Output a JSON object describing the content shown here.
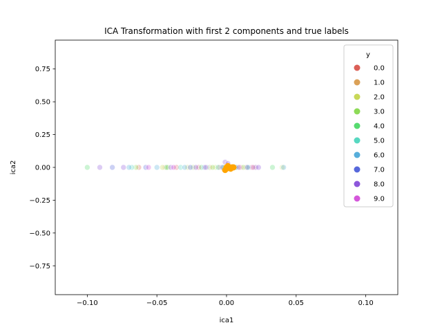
{
  "chart_data": {
    "type": "scatter",
    "title": "ICA Transformation with first 2 components and true labels",
    "xlabel": "ica1",
    "ylabel": "ica2",
    "xlim": [
      -0.123,
      0.123
    ],
    "ylim": [
      -0.97,
      0.97
    ],
    "xticks": [
      -0.1,
      -0.05,
      0.0,
      0.05,
      0.1
    ],
    "xtick_labels": [
      "−0.10",
      "−0.05",
      "0.00",
      "0.05",
      "0.10"
    ],
    "yticks": [
      0.75,
      0.5,
      0.25,
      0.0,
      -0.25,
      -0.5,
      -0.75
    ],
    "ytick_labels": [
      "0.75",
      "0.50",
      "0.25",
      "0.00",
      "−0.25",
      "−0.50",
      "−0.75"
    ],
    "grid": false,
    "legend": {
      "title": "y",
      "placement": "top-right",
      "entries": [
        {
          "label": "0.0",
          "color": "#db5f57"
        },
        {
          "label": "1.0",
          "color": "#dba157"
        },
        {
          "label": "2.0",
          "color": "#c8d858"
        },
        {
          "label": "3.0",
          "color": "#8ddb57"
        },
        {
          "label": "4.0",
          "color": "#57db70"
        },
        {
          "label": "5.0",
          "color": "#57d8c1"
        },
        {
          "label": "6.0",
          "color": "#57aedb"
        },
        {
          "label": "7.0",
          "color": "#5768db"
        },
        {
          "label": "8.0",
          "color": "#8d57db"
        },
        {
          "label": "9.0",
          "color": "#d557db"
        }
      ]
    },
    "series": [
      {
        "name": "0.0",
        "color": "#db5f57",
        "x": [
          -0.063,
          -0.036,
          -0.02,
          -0.005,
          0.003,
          0.01,
          0.018
        ],
        "y": [
          0,
          0,
          0,
          0,
          0,
          0,
          0
        ]
      },
      {
        "name": "1.0",
        "color": "#dba157",
        "x": [
          -0.044,
          -0.012,
          0.006,
          0.014
        ],
        "y": [
          0,
          0,
          0,
          0
        ]
      },
      {
        "name": "2.0",
        "color": "#c8d858",
        "x": [
          -0.046,
          -0.028,
          -0.008,
          0.004,
          0.02,
          0.04
        ],
        "y": [
          0,
          0,
          0,
          0,
          0,
          0
        ]
      },
      {
        "name": "3.0",
        "color": "#8ddb57",
        "x": [
          -0.065,
          -0.042,
          -0.024,
          -0.01,
          0.012
        ],
        "y": [
          0,
          0,
          0,
          0,
          0
        ]
      },
      {
        "name": "4.0",
        "color": "#57db70",
        "x": [
          -0.1,
          -0.043,
          -0.018,
          -0.002,
          0.008,
          0.033
        ],
        "y": [
          0,
          0,
          0,
          0,
          0,
          0
        ]
      },
      {
        "name": "5.0",
        "color": "#57d8c1",
        "x": [
          -0.068,
          -0.033,
          -0.014,
          -0.006,
          0.002,
          0.016
        ],
        "y": [
          0,
          0,
          0,
          0,
          -0.01,
          0
        ]
      },
      {
        "name": "6.0",
        "color": "#57aedb",
        "x": [
          -0.07,
          -0.05,
          -0.03,
          -0.016,
          0.007,
          0.041
        ],
        "y": [
          0,
          0,
          0,
          0,
          0,
          0
        ]
      },
      {
        "name": "7.0",
        "color": "#5768db",
        "x": [
          -0.082,
          -0.058,
          -0.026,
          -0.003,
          0.004,
          0.015
        ],
        "y": [
          0,
          0,
          0,
          0,
          0,
          0
        ]
      },
      {
        "name": "8.0",
        "color": "#8d57db",
        "x": [
          -0.091,
          -0.074,
          -0.04,
          -0.022,
          -0.001,
          0.001,
          0.021,
          0.023
        ],
        "y": [
          0,
          0,
          0,
          0,
          0.04,
          0.03,
          0,
          0
        ]
      },
      {
        "name": "9.0",
        "color": "#d557db",
        "x": [
          -0.056,
          -0.038,
          -0.015,
          0.009,
          0.019
        ],
        "y": [
          0,
          0,
          0,
          0,
          0
        ]
      }
    ],
    "highlight": {
      "color": "#ffa500",
      "x": [
        0.0,
        0.002,
        0.003,
        0.004,
        0.001,
        0.005,
        -0.001,
        0.0
      ],
      "y": [
        0.0,
        0.0,
        -0.01,
        0.0,
        0.01,
        0.0,
        -0.02,
        -0.01
      ]
    }
  }
}
